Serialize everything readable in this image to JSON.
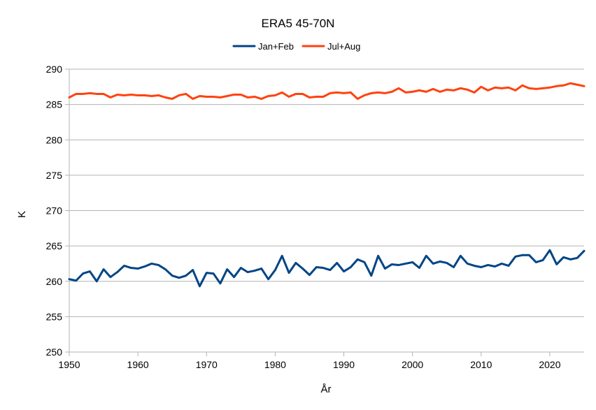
{
  "chart_data": {
    "type": "line",
    "title": "ERA5 45-70N",
    "xlabel": "År",
    "ylabel": "K",
    "xlim": [
      1950,
      2025
    ],
    "ylim": [
      250,
      290
    ],
    "x_ticks": [
      1950,
      1960,
      1970,
      1980,
      1990,
      2000,
      2010,
      2020
    ],
    "y_ticks": [
      250,
      255,
      260,
      265,
      270,
      275,
      280,
      285,
      290
    ],
    "grid": "horizontal",
    "legend_position": "top-center",
    "x": [
      1950,
      1951,
      1952,
      1953,
      1954,
      1955,
      1956,
      1957,
      1958,
      1959,
      1960,
      1961,
      1962,
      1963,
      1964,
      1965,
      1966,
      1967,
      1968,
      1969,
      1970,
      1971,
      1972,
      1973,
      1974,
      1975,
      1976,
      1977,
      1978,
      1979,
      1980,
      1981,
      1982,
      1983,
      1984,
      1985,
      1986,
      1987,
      1988,
      1989,
      1990,
      1991,
      1992,
      1993,
      1994,
      1995,
      1996,
      1997,
      1998,
      1999,
      2000,
      2001,
      2002,
      2003,
      2004,
      2005,
      2006,
      2007,
      2008,
      2009,
      2010,
      2011,
      2012,
      2013,
      2014,
      2015,
      2016,
      2017,
      2018,
      2019,
      2020,
      2021,
      2022,
      2023,
      2024,
      2025
    ],
    "series": [
      {
        "name": "Jan+Feb",
        "color": "#004586",
        "values": [
          260.3,
          260.1,
          261.1,
          261.4,
          260.0,
          261.7,
          260.6,
          261.3,
          262.2,
          261.9,
          261.8,
          262.1,
          262.5,
          262.3,
          261.7,
          260.8,
          260.5,
          260.8,
          261.6,
          259.3,
          261.2,
          261.1,
          259.7,
          261.7,
          260.6,
          261.9,
          261.3,
          261.5,
          261.8,
          260.3,
          261.6,
          263.6,
          261.2,
          262.6,
          261.8,
          260.9,
          262.0,
          261.9,
          261.6,
          262.6,
          261.4,
          262.0,
          263.1,
          262.7,
          260.8,
          263.6,
          261.8,
          262.4,
          262.3,
          262.5,
          262.7,
          261.9,
          263.6,
          262.5,
          262.8,
          262.6,
          262.0,
          263.6,
          262.5,
          262.2,
          262.0,
          262.3,
          262.1,
          262.5,
          262.2,
          263.5,
          263.7,
          263.7,
          262.7,
          263.0,
          264.4,
          262.4,
          263.4,
          263.1,
          263.3,
          264.3
        ]
      },
      {
        "name": "Jul+Aug",
        "color": "#ff420e",
        "values": [
          286.0,
          286.5,
          286.5,
          286.6,
          286.5,
          286.5,
          286.0,
          286.4,
          286.3,
          286.4,
          286.3,
          286.3,
          286.2,
          286.3,
          286.0,
          285.8,
          286.3,
          286.5,
          285.8,
          286.2,
          286.1,
          286.1,
          286.0,
          286.2,
          286.4,
          286.4,
          286.0,
          286.1,
          285.8,
          286.2,
          286.3,
          286.7,
          286.1,
          286.5,
          286.5,
          286.0,
          286.1,
          286.1,
          286.6,
          286.7,
          286.6,
          286.7,
          285.8,
          286.3,
          286.6,
          286.7,
          286.6,
          286.8,
          287.3,
          286.7,
          286.8,
          287.0,
          286.8,
          287.2,
          286.8,
          287.1,
          287.0,
          287.3,
          287.1,
          286.7,
          287.5,
          287.0,
          287.4,
          287.3,
          287.4,
          287.0,
          287.7,
          287.3,
          287.2,
          287.3,
          287.4,
          287.6,
          287.7,
          288.0,
          287.8,
          287.6
        ]
      }
    ]
  }
}
